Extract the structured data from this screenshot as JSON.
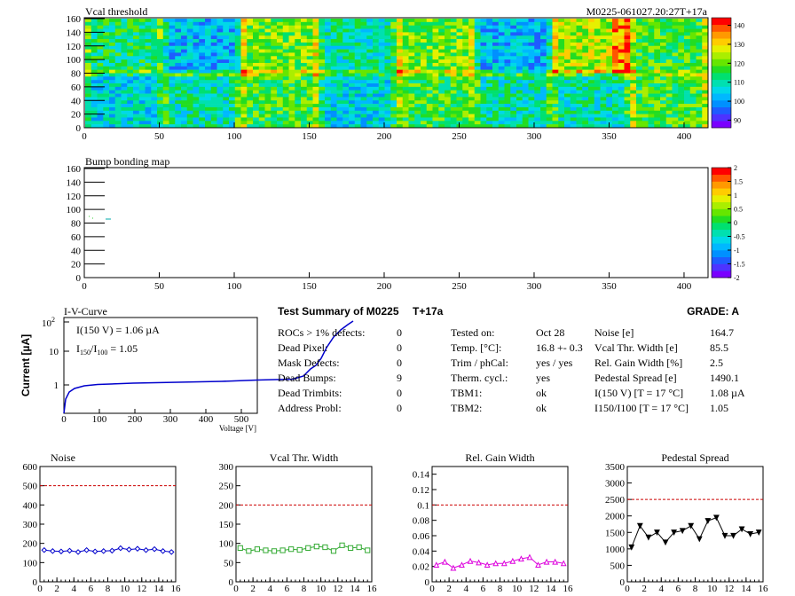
{
  "vcal_map": {
    "title": "Vcal threshold",
    "id_label": "M0225-061027.20:27T+17a",
    "x_ticks": [
      "0",
      "50",
      "100",
      "150",
      "200",
      "250",
      "300",
      "350",
      "400"
    ],
    "y_ticks": [
      "0",
      "20",
      "40",
      "60",
      "80",
      "100",
      "120",
      "140",
      "160"
    ],
    "colorbar_ticks": [
      "90",
      "100",
      "110",
      "120",
      "130",
      "140"
    ],
    "xlim": [
      0,
      416
    ],
    "ylim": [
      0,
      160
    ]
  },
  "bump_map": {
    "title": "Bump bonding map",
    "x_ticks": [
      "0",
      "50",
      "100",
      "150",
      "200",
      "250",
      "300",
      "350",
      "400"
    ],
    "y_ticks": [
      "0",
      "20",
      "40",
      "60",
      "80",
      "100",
      "120",
      "140",
      "160"
    ],
    "colorbar_ticks": [
      "-2",
      "-1.5",
      "-1",
      "-0.5",
      "0",
      "0.5",
      "1",
      "1.5",
      "2"
    ]
  },
  "iv": {
    "title": "I-V-Curve",
    "ylabel": "Current [µA]",
    "xlabel": "Voltage [V]",
    "annot1": "I(150 V) = 1.06 µA",
    "annot2_a": "I",
    "annot2_sub1": "150",
    "annot2_b": "/I",
    "annot2_sub2": "100",
    "annot2_c": " =  1.05",
    "x_ticks": [
      "0",
      "100",
      "200",
      "300",
      "400",
      "500"
    ],
    "y_ticks": [
      "1",
      "10",
      "10"
    ],
    "y_tick_sup": "2",
    "color": "#0000cc"
  },
  "summary": {
    "title": "Test Summary of M0225",
    "temp_tag": "T+17a",
    "grade": "GRADE:  A",
    "col1": [
      {
        "label": "ROCs > 1% defects:",
        "value": "0"
      },
      {
        "label": "Dead Pixel:",
        "value": "0"
      },
      {
        "label": "Mask Defects:",
        "value": "0"
      },
      {
        "label": "Dead Bumps:",
        "value": "9"
      },
      {
        "label": "Dead Trimbits:",
        "value": "0"
      },
      {
        "label": "Address Probl:",
        "value": "0"
      }
    ],
    "col2": [
      {
        "label": "Tested on:",
        "value": "Oct 28"
      },
      {
        "label": "Temp. [°C]:",
        "value": "16.8 +- 0.3"
      },
      {
        "label": "Trim / phCal:",
        "value": "yes / yes"
      },
      {
        "label": "Therm. cycl.:",
        "value": "yes"
      },
      {
        "label": "TBM1:",
        "value": "ok"
      },
      {
        "label": "TBM2:",
        "value": "ok"
      }
    ],
    "col3": [
      {
        "label": "Noise [e]",
        "value": "164.7"
      },
      {
        "label": "Vcal Thr. Width [e]",
        "value": "85.5"
      },
      {
        "label": "Rel. Gain Width [%]",
        "value": "2.5"
      },
      {
        "label": "Pedestal Spread [e]",
        "value": "1490.1"
      },
      {
        "label": "I(150 V) [T = 17 °C]",
        "value": "1.08 µA"
      },
      {
        "label": "I150/I100  [T = 17 °C]",
        "value": "1.05"
      }
    ]
  },
  "chart_data": [
    {
      "type": "line",
      "title": "Noise",
      "color": "#0000cc",
      "x": [
        0,
        1,
        2,
        3,
        4,
        5,
        6,
        7,
        8,
        9,
        10,
        11,
        12,
        13,
        14,
        15
      ],
      "values": [
        165,
        160,
        158,
        162,
        155,
        165,
        158,
        160,
        162,
        175,
        168,
        172,
        165,
        170,
        160,
        155
      ],
      "threshold": 500,
      "ylim": [
        0,
        600
      ],
      "xlim": [
        0,
        16
      ],
      "x_ticks": [
        "0",
        "2",
        "4",
        "6",
        "8",
        "10",
        "12",
        "14",
        "16"
      ],
      "y_ticks": [
        "0",
        "100",
        "200",
        "300",
        "400",
        "500",
        "600"
      ]
    },
    {
      "type": "line",
      "title": "Vcal Thr. Width",
      "color": "#33aa33",
      "x": [
        0,
        1,
        2,
        3,
        4,
        5,
        6,
        7,
        8,
        9,
        10,
        11,
        12,
        13,
        14,
        15
      ],
      "values": [
        88,
        80,
        85,
        82,
        80,
        82,
        85,
        83,
        88,
        92,
        90,
        80,
        95,
        88,
        90,
        82
      ],
      "threshold": 200,
      "ylim": [
        0,
        300
      ],
      "xlim": [
        0,
        16
      ],
      "x_ticks": [
        "0",
        "2",
        "4",
        "6",
        "8",
        "10",
        "12",
        "14",
        "16"
      ],
      "y_ticks": [
        "0",
        "50",
        "100",
        "150",
        "200",
        "250",
        "300"
      ]
    },
    {
      "type": "line",
      "title": "Rel. Gain Width",
      "color": "#dd00dd",
      "x": [
        0,
        1,
        2,
        3,
        4,
        5,
        6,
        7,
        8,
        9,
        10,
        11,
        12,
        13,
        14,
        15
      ],
      "values": [
        0.022,
        0.026,
        0.018,
        0.022,
        0.027,
        0.025,
        0.022,
        0.024,
        0.024,
        0.027,
        0.03,
        0.032,
        0.022,
        0.026,
        0.026,
        0.024
      ],
      "threshold": 0.1,
      "ylim": [
        0,
        0.15
      ],
      "xlim": [
        0,
        16
      ],
      "x_ticks": [
        "0",
        "2",
        "4",
        "6",
        "8",
        "10",
        "12",
        "14",
        "16"
      ],
      "y_ticks": [
        "0",
        "0.02",
        "0.04",
        "0.06",
        "0.08",
        "0.1",
        "0.12",
        "0.14"
      ]
    },
    {
      "type": "line",
      "title": "Pedestal Spread",
      "color": "#000000",
      "x": [
        0,
        1,
        2,
        3,
        4,
        5,
        6,
        7,
        8,
        9,
        10,
        11,
        12,
        13,
        14,
        15
      ],
      "values": [
        1050,
        1700,
        1350,
        1500,
        1200,
        1500,
        1550,
        1700,
        1300,
        1850,
        1950,
        1400,
        1400,
        1600,
        1450,
        1500
      ],
      "threshold": 2500,
      "ylim": [
        0,
        3500
      ],
      "xlim": [
        0,
        16
      ],
      "x_ticks": [
        "0",
        "2",
        "4",
        "6",
        "8",
        "10",
        "12",
        "14",
        "16"
      ],
      "y_ticks": [
        "0",
        "500",
        "1000",
        "1500",
        "2000",
        "2500",
        "3000",
        "3500"
      ]
    }
  ]
}
